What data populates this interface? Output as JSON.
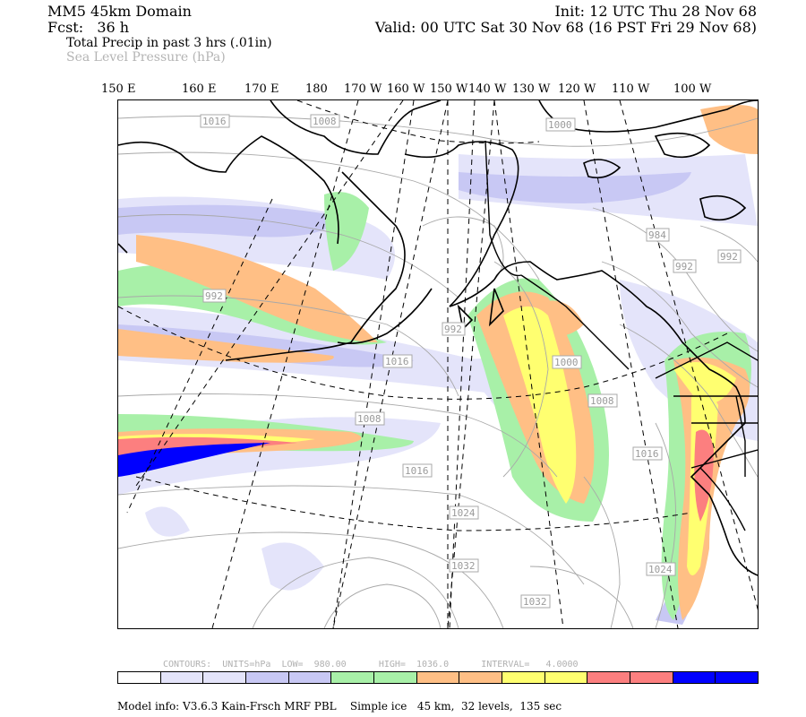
{
  "header": {
    "domain": "MM5 45km Domain",
    "init": "Init: 12 UTC Thu 28 Nov 68",
    "fcst": "Fcst:   36 h",
    "valid": "Valid: 00 UTC Sat 30 Nov 68 (16 PST Fri 29 Nov 68)",
    "field1": "Total Precip in past 3 hrs (.01in)",
    "field2": "Sea Level Pressure (hPa)"
  },
  "longitudes": [
    "150 E",
    "160 E",
    "170 E",
    "180",
    "170 W",
    "160 W",
    "150 W",
    "140 W",
    "130 W",
    "120 W",
    "110 W",
    "100 W"
  ],
  "pressure_labels": [
    "1016",
    "1008",
    "1000",
    "984",
    "992",
    "992",
    "992",
    "992",
    "1000",
    "1008",
    "1008",
    "1016",
    "1016",
    "1016",
    "1024",
    "1032",
    "1032",
    "1024"
  ],
  "contours_info": "CONTOURS:  UNITS=hPa  LOW=  980.00      HIGH=  1036.0      INTERVAL=   4.0000",
  "colors": {
    "precip_levels": [
      "#ffffff",
      "#e0e0f8",
      "#c8c8f4",
      "#a0a0ec",
      "#a8f0a8",
      "#ffbf85",
      "#ffff70",
      "#fc7f7f",
      "#0000ff"
    ]
  },
  "colorbar": [
    "#ffffff",
    "#e4e4fa",
    "#e4e4fa",
    "#c8c8f4",
    "#c8c8f4",
    "#a8f0a8",
    "#a8f0a8",
    "#ffbf85",
    "#ffbf85",
    "#ffff70",
    "#ffff70",
    "#fc7f7f",
    "#fc7f7f",
    "#0000ff",
    "#0000ff"
  ],
  "footer": "Model info: V3.6.3 Kain-Frsch MRF PBL    Simple ice   45 km,  32 levels,  135 sec"
}
